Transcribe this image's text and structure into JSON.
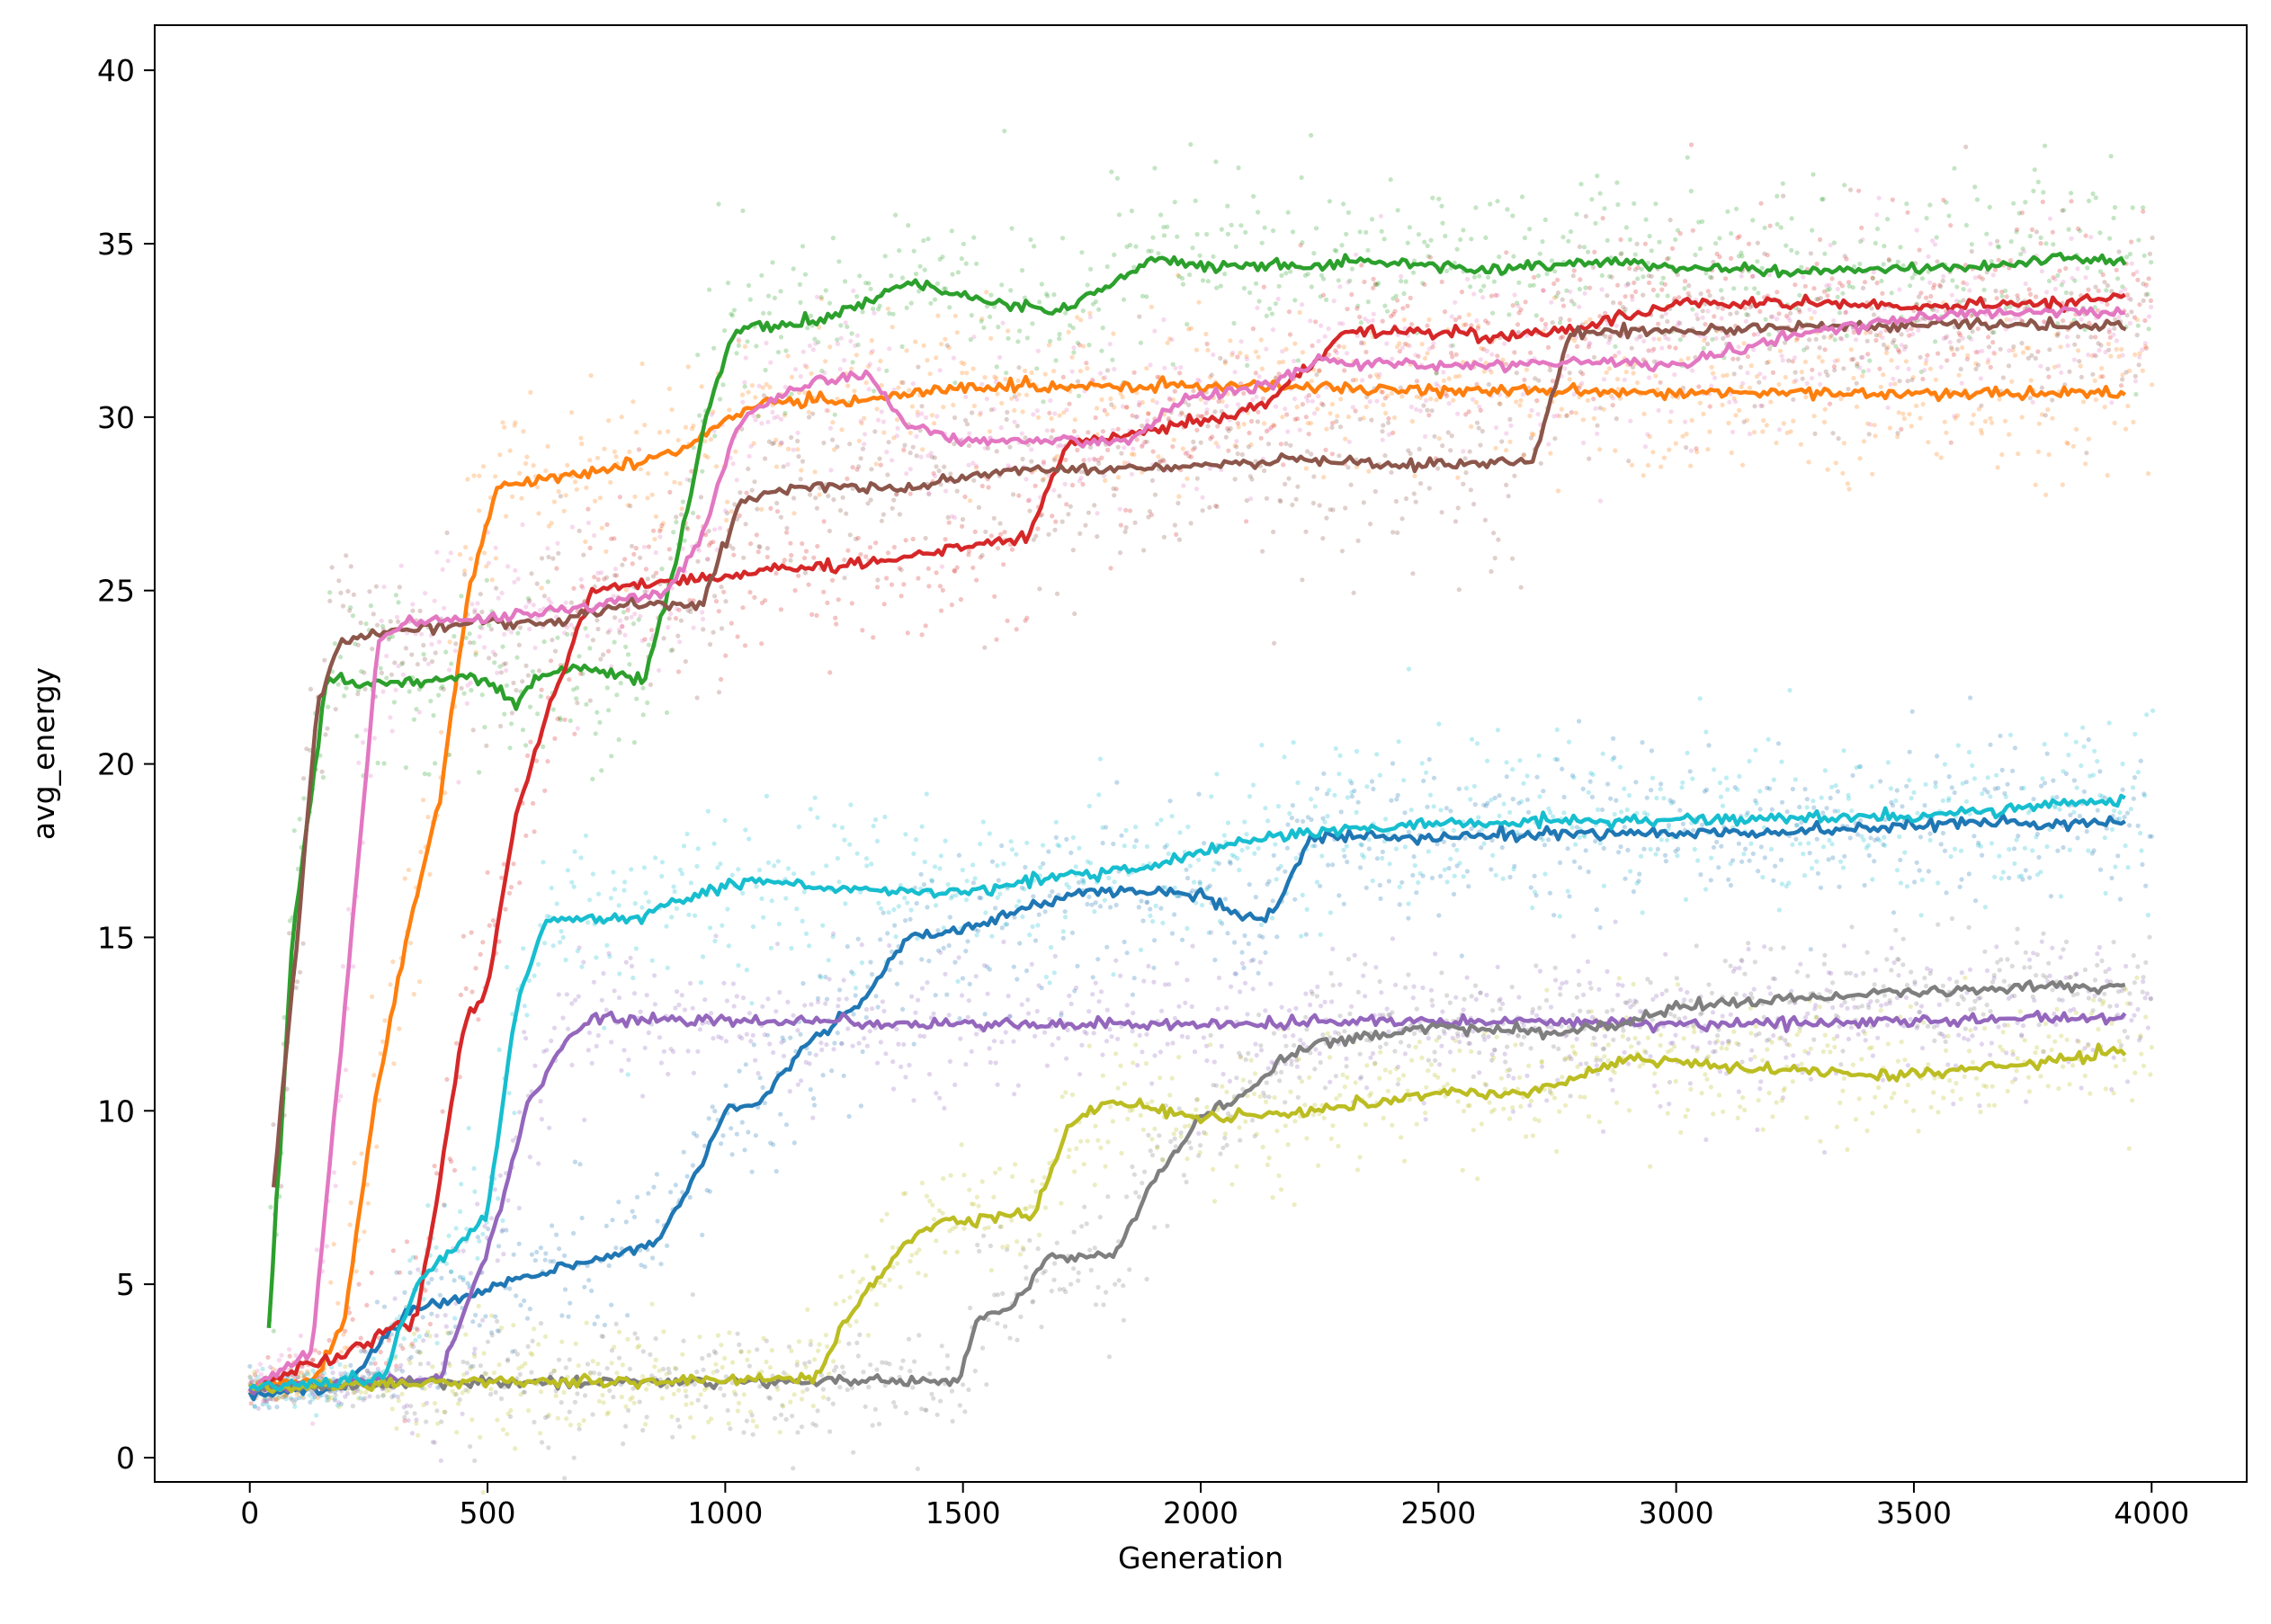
{
  "chart_data": {
    "type": "scatter",
    "title": "",
    "xlabel": "Generation",
    "ylabel": "avg_energy",
    "xlim": [
      -200,
      4200
    ],
    "ylim": [
      -0.7,
      41.3
    ],
    "xticks": [
      0,
      500,
      1000,
      1500,
      2000,
      2500,
      3000,
      3500,
      4000
    ],
    "yticks": [
      0,
      5,
      10,
      15,
      20,
      25,
      30,
      35,
      40
    ],
    "grid": false,
    "legend": "none",
    "series": [
      {
        "color": "#1f77b4",
        "noise": 1.2,
        "points": [
          [
            0,
            1.8
          ],
          [
            200,
            2.1
          ],
          [
            330,
            4.2
          ],
          [
            450,
            4.6
          ],
          [
            560,
            5.2
          ],
          [
            700,
            5.6
          ],
          [
            860,
            6.2
          ],
          [
            950,
            8.5
          ],
          [
            1000,
            10.0
          ],
          [
            1080,
            10.3
          ],
          [
            1160,
            11.8
          ],
          [
            1280,
            13.0
          ],
          [
            1380,
            15.0
          ],
          [
            1500,
            15.2
          ],
          [
            1620,
            15.8
          ],
          [
            1750,
            16.3
          ],
          [
            1900,
            16.3
          ],
          [
            2000,
            16.3
          ],
          [
            2080,
            15.6
          ],
          [
            2150,
            15.6
          ],
          [
            2230,
            17.9
          ],
          [
            2500,
            17.9
          ],
          [
            2800,
            18.0
          ],
          [
            3200,
            18.0
          ],
          [
            3600,
            18.3
          ],
          [
            3950,
            18.3
          ]
        ]
      },
      {
        "color": "#ff7f0e",
        "noise": 1.3,
        "points": [
          [
            0,
            2.0
          ],
          [
            140,
            2.3
          ],
          [
            200,
            4.0
          ],
          [
            260,
            10.0
          ],
          [
            330,
            15.0
          ],
          [
            400,
            19.0
          ],
          [
            460,
            25.0
          ],
          [
            520,
            28.0
          ],
          [
            620,
            28.2
          ],
          [
            800,
            28.6
          ],
          [
            900,
            29.0
          ],
          [
            1000,
            29.9
          ],
          [
            1080,
            30.4
          ],
          [
            1300,
            30.5
          ],
          [
            1500,
            30.9
          ],
          [
            2000,
            30.9
          ],
          [
            2500,
            30.8
          ],
          [
            3000,
            30.7
          ],
          [
            3500,
            30.7
          ],
          [
            3950,
            30.7
          ]
        ]
      },
      {
        "color": "#2ca02c",
        "noise": 1.3,
        "points": [
          [
            40,
            3.6
          ],
          [
            90,
            15.0
          ],
          [
            160,
            22.4
          ],
          [
            300,
            22.3
          ],
          [
            480,
            22.5
          ],
          [
            560,
            21.7
          ],
          [
            600,
            22.5
          ],
          [
            700,
            22.8
          ],
          [
            830,
            22.4
          ],
          [
            900,
            26.0
          ],
          [
            960,
            30.0
          ],
          [
            1020,
            32.5
          ],
          [
            1200,
            32.8
          ],
          [
            1400,
            33.9
          ],
          [
            1500,
            33.5
          ],
          [
            1700,
            33.0
          ],
          [
            1900,
            34.5
          ],
          [
            2100,
            34.3
          ],
          [
            2400,
            34.5
          ],
          [
            2600,
            34.2
          ],
          [
            2800,
            34.5
          ],
          [
            3200,
            34.2
          ],
          [
            3600,
            34.3
          ],
          [
            3800,
            34.6
          ],
          [
            3950,
            34.5
          ]
        ]
      },
      {
        "color": "#d62728",
        "noise": 1.4,
        "points": [
          [
            0,
            2.0
          ],
          [
            200,
            3.0
          ],
          [
            300,
            3.8
          ],
          [
            350,
            3.9
          ],
          [
            400,
            8.0
          ],
          [
            450,
            12.5
          ],
          [
            500,
            13.5
          ],
          [
            560,
            18.5
          ],
          [
            640,
            22.0
          ],
          [
            720,
            25.0
          ],
          [
            900,
            25.3
          ],
          [
            1100,
            25.6
          ],
          [
            1300,
            25.8
          ],
          [
            1500,
            26.2
          ],
          [
            1640,
            26.6
          ],
          [
            1720,
            29.3
          ],
          [
            1900,
            29.6
          ],
          [
            2050,
            30.0
          ],
          [
            2150,
            30.5
          ],
          [
            2300,
            32.4
          ],
          [
            2450,
            32.5
          ],
          [
            2600,
            32.3
          ],
          [
            2800,
            32.6
          ],
          [
            3000,
            33.3
          ],
          [
            3200,
            33.3
          ],
          [
            3500,
            33.2
          ],
          [
            3800,
            33.3
          ],
          [
            3950,
            33.5
          ]
        ]
      },
      {
        "color": "#9467bd",
        "noise": 1.1,
        "points": [
          [
            0,
            2.0
          ],
          [
            400,
            2.3
          ],
          [
            500,
            6.0
          ],
          [
            580,
            10.0
          ],
          [
            660,
            12.0
          ],
          [
            720,
            12.7
          ],
          [
            900,
            12.6
          ],
          [
            1500,
            12.5
          ],
          [
            2000,
            12.5
          ],
          [
            2500,
            12.6
          ],
          [
            3000,
            12.5
          ],
          [
            3500,
            12.6
          ],
          [
            3950,
            12.7
          ]
        ]
      },
      {
        "color": "#8c564b",
        "noise": 1.5,
        "points": [
          [
            50,
            7.8
          ],
          [
            100,
            15.0
          ],
          [
            140,
            21.5
          ],
          [
            190,
            23.6
          ],
          [
            300,
            23.8
          ],
          [
            500,
            24.1
          ],
          [
            650,
            24.1
          ],
          [
            800,
            24.7
          ],
          [
            950,
            24.5
          ],
          [
            1030,
            27.5
          ],
          [
            1130,
            28.0
          ],
          [
            1400,
            28.0
          ],
          [
            1600,
            28.5
          ],
          [
            1800,
            28.5
          ],
          [
            2000,
            28.6
          ],
          [
            2200,
            28.8
          ],
          [
            2400,
            28.6
          ],
          [
            2600,
            28.7
          ],
          [
            2700,
            28.8
          ],
          [
            2780,
            32.5
          ],
          [
            3000,
            32.5
          ],
          [
            3300,
            32.6
          ],
          [
            3600,
            32.7
          ],
          [
            3950,
            32.6
          ]
        ]
      },
      {
        "color": "#e377c2",
        "noise": 1.3,
        "points": [
          [
            0,
            2.0
          ],
          [
            130,
            3.0
          ],
          [
            200,
            13.0
          ],
          [
            270,
            23.5
          ],
          [
            330,
            24.1
          ],
          [
            500,
            24.2
          ],
          [
            700,
            24.5
          ],
          [
            880,
            25.0
          ],
          [
            950,
            26.5
          ],
          [
            1030,
            30.0
          ],
          [
            1180,
            31.0
          ],
          [
            1300,
            31.3
          ],
          [
            1380,
            29.8
          ],
          [
            1500,
            29.3
          ],
          [
            1700,
            29.3
          ],
          [
            1850,
            29.3
          ],
          [
            1950,
            30.5
          ],
          [
            2100,
            30.8
          ],
          [
            2250,
            31.6
          ],
          [
            2500,
            31.5
          ],
          [
            2800,
            31.6
          ],
          [
            3000,
            31.5
          ],
          [
            3300,
            32.5
          ],
          [
            3600,
            33.0
          ],
          [
            3950,
            33.0
          ]
        ]
      },
      {
        "color": "#7f7f7f",
        "noise": 0.9,
        "points": [
          [
            0,
            2.0
          ],
          [
            500,
            2.2
          ],
          [
            1000,
            2.2
          ],
          [
            1490,
            2.2
          ],
          [
            1530,
            4.0
          ],
          [
            1600,
            4.3
          ],
          [
            1680,
            5.8
          ],
          [
            1820,
            5.8
          ],
          [
            1900,
            8.0
          ],
          [
            2000,
            9.8
          ],
          [
            2100,
            10.5
          ],
          [
            2170,
            11.5
          ],
          [
            2250,
            12.0
          ],
          [
            2500,
            12.4
          ],
          [
            2700,
            12.3
          ],
          [
            2900,
            12.5
          ],
          [
            3000,
            13.0
          ],
          [
            3200,
            13.2
          ],
          [
            3500,
            13.4
          ],
          [
            3800,
            13.6
          ],
          [
            3950,
            13.5
          ]
        ]
      },
      {
        "color": "#bcbd22",
        "noise": 1.0,
        "points": [
          [
            0,
            2.0
          ],
          [
            500,
            2.2
          ],
          [
            1000,
            2.2
          ],
          [
            1190,
            2.3
          ],
          [
            1280,
            4.5
          ],
          [
            1380,
            6.2
          ],
          [
            1450,
            6.8
          ],
          [
            1650,
            7.0
          ],
          [
            1720,
            9.5
          ],
          [
            1800,
            10.3
          ],
          [
            1900,
            10.1
          ],
          [
            2000,
            9.8
          ],
          [
            2250,
            10.0
          ],
          [
            2500,
            10.5
          ],
          [
            2700,
            10.5
          ],
          [
            2900,
            11.5
          ],
          [
            3200,
            11.2
          ],
          [
            3450,
            11.0
          ],
          [
            3700,
            11.3
          ],
          [
            3950,
            11.7
          ]
        ]
      },
      {
        "color": "#17becf",
        "noise": 1.3,
        "points": [
          [
            0,
            2.0
          ],
          [
            280,
            2.3
          ],
          [
            350,
            5.0
          ],
          [
            450,
            6.3
          ],
          [
            500,
            7.0
          ],
          [
            560,
            13.0
          ],
          [
            620,
            15.5
          ],
          [
            800,
            15.5
          ],
          [
            900,
            16.0
          ],
          [
            1050,
            16.7
          ],
          [
            1200,
            16.4
          ],
          [
            1500,
            16.3
          ],
          [
            1700,
            16.8
          ],
          [
            1900,
            17.0
          ],
          [
            2000,
            17.5
          ],
          [
            2200,
            18.0
          ],
          [
            2500,
            18.3
          ],
          [
            3000,
            18.4
          ],
          [
            3500,
            18.5
          ],
          [
            3950,
            19.0
          ]
        ]
      }
    ]
  }
}
